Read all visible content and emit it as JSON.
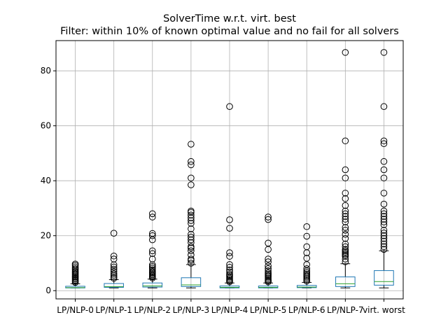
{
  "chart_data": {
    "type": "box",
    "title": "SolverTime w.r.t. virt. best",
    "subtitle": "Filter: within 10% of known optimal value and no fail for all solvers",
    "xlabel": "",
    "ylabel": "",
    "ylim": [
      -3,
      91
    ],
    "yticks": [
      0,
      20,
      40,
      60,
      80
    ],
    "grid": true,
    "colors": {
      "box": "#1f77b4",
      "median": "#2ca02c",
      "whisker": "#000000",
      "grid": "#b0b0b0",
      "flier": "#000000"
    },
    "categories": [
      "LP/NLP-0",
      "LP/NLP-1",
      "LP/NLP-2",
      "LP/NLP-3",
      "LP/NLP-4",
      "LP/NLP-5",
      "LP/NLP-6",
      "LP/NLP-7",
      "virt. worst"
    ],
    "tick_labels": [
      "LP/NLP-0",
      "LP/NLP-1",
      "LP/NLP-2",
      "LP/NLP-3",
      "LP/NLP-4",
      "LP/NLP-5",
      "LP/NLP-6",
      "LP/NLP-7",
      "virt. worst"
    ],
    "boxes": [
      {
        "q1": 1.0,
        "median": 1.1,
        "q3": 1.6,
        "whisker_low": 1.0,
        "whisker_high": 2.5,
        "fliers": [
          3.0,
          3.4,
          3.8,
          4.2,
          4.6,
          5.0,
          5.4,
          5.8,
          6.2,
          6.6,
          7.0,
          7.5,
          8.0,
          8.6,
          9.2,
          9.7
        ]
      },
      {
        "q1": 1.2,
        "median": 1.5,
        "q3": 2.6,
        "whisker_low": 1.0,
        "whisker_high": 4.0,
        "fliers": [
          4.5,
          5.0,
          5.6,
          6.2,
          7.0,
          7.8,
          8.6,
          9.4,
          11.5,
          12.6,
          20.9
        ]
      },
      {
        "q1": 1.3,
        "median": 1.7,
        "q3": 2.8,
        "whisker_low": 1.0,
        "whisker_high": 4.2,
        "fliers": [
          4.6,
          5.0,
          5.4,
          5.8,
          6.2,
          6.6,
          7.0,
          7.6,
          8.2,
          8.8,
          9.4,
          11.5,
          13.5,
          14.5,
          18.5,
          20.0,
          20.8,
          26.8,
          28.0
        ]
      },
      {
        "q1": 1.5,
        "median": 2.1,
        "q3": 4.7,
        "whisker_low": 1.0,
        "whisker_high": 9.5,
        "fliers": [
          10.0,
          11.0,
          11.5,
          13.0,
          14.5,
          15.5,
          16.0,
          17.5,
          18.5,
          19.5,
          20.5,
          22.5,
          24.5,
          25.5,
          26.5,
          27.5,
          28.5,
          29.0,
          38.5,
          41.0,
          45.8,
          47.0,
          53.3
        ]
      },
      {
        "q1": 1.0,
        "median": 1.2,
        "q3": 1.7,
        "whisker_low": 1.0,
        "whisker_high": 2.8,
        "fliers": [
          3.2,
          3.6,
          4.0,
          4.5,
          5.0,
          5.5,
          6.0,
          6.8,
          7.5,
          8.5,
          9.5,
          12.5,
          13.8,
          22.7,
          25.8,
          67.0
        ]
      },
      {
        "q1": 1.0,
        "median": 1.2,
        "q3": 1.7,
        "whisker_low": 1.0,
        "whisker_high": 2.8,
        "fliers": [
          3.2,
          3.6,
          4.0,
          4.5,
          5.0,
          5.5,
          6.0,
          6.5,
          7.2,
          8.0,
          9.0,
          10.5,
          11.5,
          15.0,
          17.3,
          25.9,
          26.8
        ]
      },
      {
        "q1": 1.1,
        "median": 1.3,
        "q3": 1.9,
        "whisker_low": 1.0,
        "whisker_high": 3.0,
        "fliers": [
          3.5,
          4.0,
          4.5,
          5.0,
          5.5,
          6.0,
          6.6,
          7.2,
          8.0,
          9.5,
          11.8,
          13.8,
          16.0,
          19.8,
          23.3
        ]
      },
      {
        "q1": 1.5,
        "median": 2.5,
        "q3": 5.0,
        "whisker_low": 1.0,
        "whisker_high": 9.8,
        "fliers": [
          10.5,
          11.5,
          12.5,
          13.0,
          13.5,
          14.0,
          14.5,
          15.0,
          16.0,
          17.0,
          19.0,
          20.5,
          22.0,
          23.0,
          25.0,
          26.0,
          27.0,
          28.0,
          29.0,
          31.0,
          33.5,
          35.5,
          41.0,
          44.0,
          54.5,
          86.7
        ]
      },
      {
        "q1": 2.0,
        "median": 3.3,
        "q3": 7.3,
        "whisker_low": 1.0,
        "whisker_high": 14.5,
        "fliers": [
          15.0,
          16.0,
          17.0,
          18.0,
          19.0,
          20.0,
          21.0,
          22.0,
          24.0,
          25.0,
          26.0,
          27.0,
          28.0,
          29.0,
          31.5,
          35.5,
          41.0,
          44.0,
          47.0,
          53.5,
          54.5,
          67.0,
          86.7
        ]
      }
    ]
  }
}
